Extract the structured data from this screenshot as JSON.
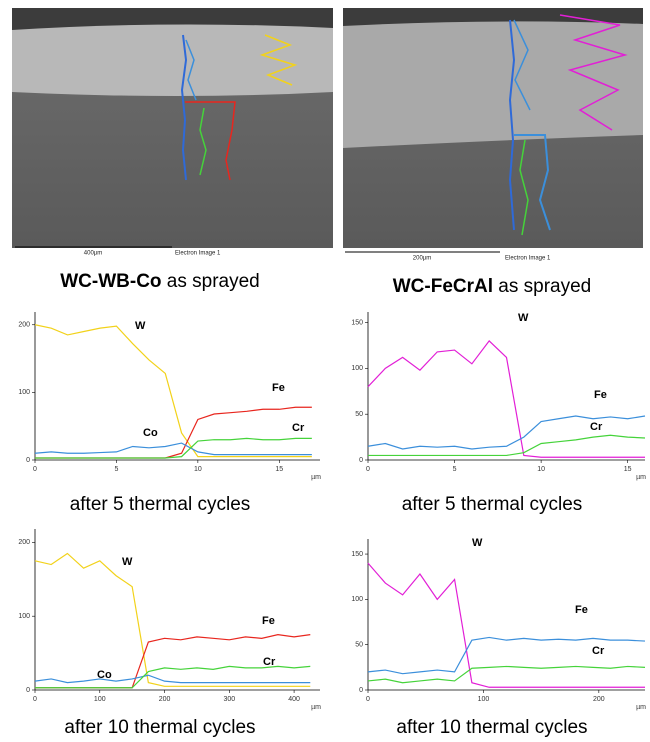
{
  "figure": {
    "images": [
      {
        "scale_label": "400µm",
        "image_label": "Electron Image 1",
        "caption_bold": "WC-WB-Co",
        "caption": " as sprayed"
      },
      {
        "scale_label": "200µm",
        "image_label": "Electron Image 1",
        "caption_bold": "WC-FeCrAl",
        "caption": " as sprayed"
      }
    ],
    "panels": [
      {
        "caption": "after 5 thermal cycles",
        "x_unit": "µm",
        "x": [
          0,
          1,
          2,
          3,
          4,
          5,
          6,
          7,
          8,
          9,
          10,
          11,
          12,
          13,
          14,
          15,
          16,
          17
        ],
        "xlim": [
          0,
          17.5
        ],
        "xticks": [
          0,
          5,
          10,
          15
        ],
        "ylim": [
          0,
          210
        ],
        "yticks": [
          0,
          100,
          200
        ],
        "series": [
          {
            "name": "W",
            "color": "#f2d21a",
            "values": [
              200,
              195,
              185,
              190,
              195,
              198,
              172,
              148,
              128,
              40,
              5,
              5,
              5,
              5,
              5,
              5,
              5,
              5
            ]
          },
          {
            "name": "Fe",
            "color": "#e8261e",
            "values": [
              3,
              3,
              3,
              3,
              3,
              3,
              3,
              3,
              3,
              10,
              60,
              68,
              70,
              72,
              75,
              75,
              78,
              78
            ]
          },
          {
            "name": "Co",
            "color": "#3b8fdb",
            "values": [
              10,
              12,
              10,
              10,
              11,
              12,
              20,
              18,
              20,
              25,
              12,
              8,
              8,
              8,
              8,
              8,
              8,
              8
            ]
          },
          {
            "name": "Cr",
            "color": "#45d33a",
            "values": [
              3,
              3,
              3,
              3,
              3,
              3,
              3,
              3,
              3,
              5,
              28,
              30,
              30,
              32,
              30,
              30,
              32,
              32
            ]
          }
        ]
      },
      {
        "caption": "after 5 thermal cycles",
        "x_unit": "µm",
        "x": [
          0,
          1,
          2,
          3,
          4,
          5,
          6,
          7,
          8,
          9,
          10,
          11,
          12,
          13,
          14,
          15,
          16
        ],
        "xlim": [
          0,
          16
        ],
        "xticks": [
          0,
          5,
          10,
          15
        ],
        "ylim": [
          0,
          155
        ],
        "yticks": [
          0,
          50,
          100,
          150
        ],
        "series": [
          {
            "name": "W",
            "color": "#e21fd6",
            "values": [
              80,
              100,
              112,
              98,
              118,
              120,
              105,
              130,
              112,
              5,
              3,
              3,
              3,
              3,
              3,
              3,
              3
            ]
          },
          {
            "name": "Fe",
            "color": "#3b8fdb",
            "values": [
              15,
              18,
              12,
              15,
              14,
              15,
              12,
              14,
              15,
              25,
              42,
              45,
              48,
              45,
              47,
              45,
              48
            ]
          },
          {
            "name": "Cr",
            "color": "#45d33a",
            "values": [
              5,
              5,
              5,
              5,
              5,
              5,
              5,
              5,
              5,
              8,
              18,
              20,
              22,
              25,
              27,
              25,
              24
            ]
          }
        ]
      },
      {
        "caption": "after 10 thermal cycles",
        "x_unit": "µm",
        "x": [
          0,
          25,
          50,
          75,
          100,
          125,
          150,
          175,
          200,
          225,
          250,
          275,
          300,
          325,
          350,
          375,
          400,
          425
        ],
        "xlim": [
          0,
          440
        ],
        "xticks": [
          0,
          100,
          200,
          300,
          400
        ],
        "ylim": [
          0,
          210
        ],
        "yticks": [
          0,
          100,
          200
        ],
        "series": [
          {
            "name": "W",
            "color": "#f2d21a",
            "values": [
              175,
              170,
              185,
              165,
              175,
              155,
              140,
              10,
              5,
              5,
              5,
              5,
              5,
              5,
              5,
              5,
              5,
              5
            ]
          },
          {
            "name": "Fe",
            "color": "#e8261e",
            "values": [
              3,
              3,
              3,
              3,
              3,
              3,
              3,
              65,
              70,
              68,
              72,
              70,
              68,
              72,
              70,
              75,
              72,
              75
            ]
          },
          {
            "name": "Co",
            "color": "#3b8fdb",
            "values": [
              12,
              15,
              10,
              12,
              15,
              12,
              15,
              20,
              12,
              10,
              10,
              10,
              10,
              10,
              10,
              10,
              10,
              10
            ]
          },
          {
            "name": "Cr",
            "color": "#45d33a",
            "values": [
              3,
              3,
              3,
              3,
              3,
              3,
              3,
              25,
              30,
              28,
              30,
              28,
              32,
              30,
              30,
              32,
              30,
              32
            ]
          }
        ]
      },
      {
        "caption": "after 10 thermal cycles",
        "x_unit": "µm",
        "x": [
          0,
          15,
          30,
          45,
          60,
          75,
          90,
          105,
          120,
          135,
          150,
          165,
          180,
          195,
          210,
          225,
          240
        ],
        "xlim": [
          0,
          240
        ],
        "xticks": [
          0,
          100,
          200
        ],
        "ylim": [
          0,
          160
        ],
        "yticks": [
          0,
          50,
          100,
          150
        ],
        "series": [
          {
            "name": "W",
            "color": "#e21fd6",
            "values": [
              140,
              118,
              105,
              128,
              100,
              122,
              8,
              3,
              3,
              3,
              3,
              3,
              3,
              3,
              3,
              3,
              3
            ]
          },
          {
            "name": "Fe",
            "color": "#3b8fdb",
            "values": [
              20,
              22,
              18,
              20,
              22,
              20,
              55,
              58,
              55,
              57,
              55,
              56,
              55,
              57,
              55,
              55,
              54
            ]
          },
          {
            "name": "Cr",
            "color": "#45d33a",
            "values": [
              10,
              12,
              8,
              10,
              12,
              10,
              24,
              25,
              26,
              25,
              24,
              25,
              26,
              25,
              24,
              26,
              25
            ]
          }
        ]
      }
    ]
  }
}
